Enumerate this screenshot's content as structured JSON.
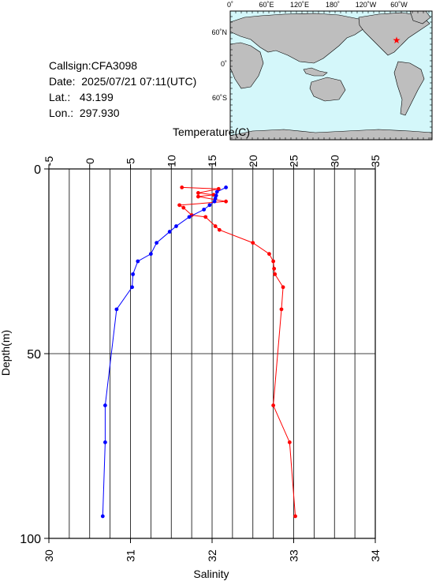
{
  "info": {
    "callsign": "Callsign:CFA3098",
    "date": "Date:  2025/07/21 07:11(UTC)",
    "lat": "Lat.:   43.199",
    "lon": "Lon.:  297.930"
  },
  "map": {
    "lon_labels": [
      "0˚",
      "60˚E",
      "120˚E",
      "180˚",
      "120˚W",
      "60˚W"
    ],
    "lat_labels": [
      "60˚N",
      "0˚",
      "60˚S"
    ],
    "ocean_color": "#d4f7fa",
    "land_color": "#bebebe",
    "marker": "star",
    "marker_color": "#ff0000"
  },
  "chart_data": {
    "type": "line",
    "ylabel": "Depth(m)",
    "ylim": [
      100,
      0
    ],
    "yticks": [
      0,
      50,
      100
    ],
    "top_axis": {
      "label": "Temperature(C)",
      "lim": [
        -5,
        35
      ],
      "ticks": [
        -5,
        0,
        5,
        10,
        15,
        20,
        25,
        30,
        35
      ]
    },
    "bottom_axis": {
      "label": "Salinity",
      "lim": [
        30,
        34
      ],
      "ticks": [
        30,
        31,
        32,
        33,
        34
      ]
    },
    "grid": true,
    "series": [
      {
        "axis": "top",
        "color": "#ff0000",
        "points": [
          [
            11.3,
            5
          ],
          [
            15.8,
            5.4
          ],
          [
            13.3,
            6.5
          ],
          [
            15.2,
            7
          ],
          [
            13.3,
            7.5
          ],
          [
            16.7,
            8.8
          ],
          [
            11.0,
            9.8
          ],
          [
            11.5,
            10.5
          ],
          [
            12.5,
            12.5
          ],
          [
            14.2,
            13
          ],
          [
            15.4,
            15.5
          ],
          [
            15.9,
            16.5
          ],
          [
            20.0,
            20
          ],
          [
            22.0,
            23
          ],
          [
            22.5,
            25
          ],
          [
            22.6,
            27
          ],
          [
            22.7,
            28.5
          ],
          [
            23.7,
            32
          ],
          [
            23.5,
            38
          ],
          [
            22.5,
            64
          ],
          [
            24.5,
            74
          ],
          [
            25.2,
            94
          ]
        ]
      },
      {
        "axis": "bottom",
        "color": "#0000ff",
        "points": [
          [
            32.17,
            5
          ],
          [
            32.06,
            6.2
          ],
          [
            32.05,
            7.2
          ],
          [
            32.04,
            8
          ],
          [
            32.03,
            8.8
          ],
          [
            31.97,
            9.8
          ],
          [
            31.9,
            11
          ],
          [
            31.72,
            13
          ],
          [
            31.56,
            15.5
          ],
          [
            31.48,
            17
          ],
          [
            31.32,
            20
          ],
          [
            31.25,
            23
          ],
          [
            31.09,
            25
          ],
          [
            31.03,
            28.5
          ],
          [
            31.02,
            32
          ],
          [
            30.83,
            38
          ],
          [
            30.69,
            64
          ],
          [
            30.69,
            74
          ],
          [
            30.66,
            94
          ]
        ]
      }
    ]
  }
}
